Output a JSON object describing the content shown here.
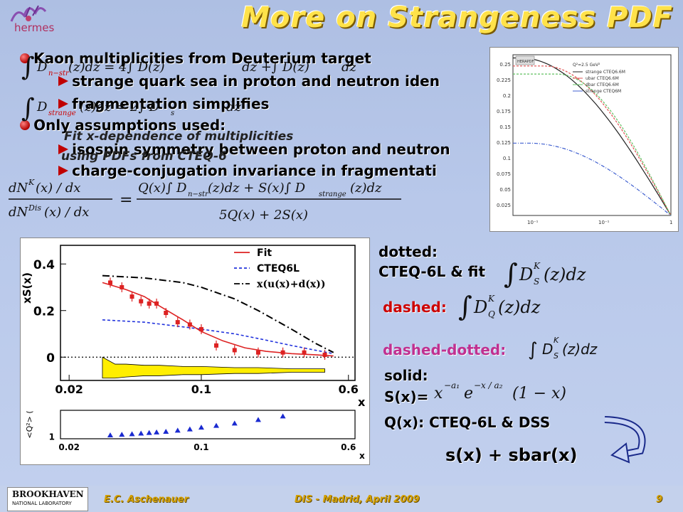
{
  "slide": {
    "title": "More on Strangeness PDF",
    "logo_text": "hermes",
    "bullets": [
      {
        "type": "dot",
        "text": "Kaon multiplicities from Deuterium target"
      },
      {
        "type": "arrow",
        "text": "strange quark sea in proton and neutron iden"
      },
      {
        "type": "arrow",
        "text": "fragmentation simplifies"
      },
      {
        "type": "dot",
        "text": "Only assumptions used:"
      },
      {
        "type": "arrow",
        "text": "isospin symmetry between proton and neutron"
      },
      {
        "type": "arrow",
        "text": "charge-conjugation invariance in fragmentati"
      }
    ],
    "fit_note_1": "Fit x-dependence of multiplicities",
    "fit_note_2": "using PDFs from CTEQ-6",
    "side_labels": {
      "dotted": "dotted:",
      "cteq_fit": "CTEQ-6L & fit",
      "dashed": "dashed:",
      "dashed_dotted": "dashed-dotted:",
      "solid": "solid:",
      "sx": "S(x)=",
      "qx": "Q(x): CTEQ-6L & DSS",
      "result": "s(x) + sbar(x)"
    },
    "footer": {
      "lab": "BROOKHAVEN",
      "lab_sub": "NATIONAL LABORATORY",
      "author": "E.C. Aschenauer",
      "conference": "DIS - Madrid, April 2009",
      "page": "9"
    }
  },
  "colors": {
    "title": "#ffe24a",
    "fit": "#dd2222",
    "cteq": "#2233dd",
    "band": "#ffee00",
    "bullet": "#c00000"
  },
  "chart_data": [
    {
      "type": "scatter",
      "ylabel": "xS(x)",
      "xlabel": "x",
      "x_scale": "log",
      "xlim": [
        0.018,
        0.65
      ],
      "ylim": [
        -0.1,
        0.48
      ],
      "x_ticks": [
        "0.02",
        "0.1",
        "0.6"
      ],
      "y_ticks": [
        "0",
        "0.2",
        "0.4"
      ],
      "legend": [
        "Fit",
        "CTEQ6L",
        "x(u(x)+d(x))"
      ],
      "legend_placement": "top-right",
      "data_points": {
        "x": [
          0.033,
          0.038,
          0.043,
          0.048,
          0.053,
          0.058,
          0.065,
          0.075,
          0.087,
          0.1,
          0.12,
          0.15,
          0.2,
          0.27,
          0.35,
          0.45
        ],
        "y": [
          0.32,
          0.3,
          0.26,
          0.24,
          0.23,
          0.23,
          0.19,
          0.15,
          0.14,
          0.12,
          0.05,
          0.03,
          0.02,
          0.02,
          0.02,
          0.01
        ]
      },
      "fit_curve": {
        "x": [
          0.03,
          0.04,
          0.05,
          0.06,
          0.08,
          0.1,
          0.13,
          0.17,
          0.22,
          0.3,
          0.4,
          0.5
        ],
        "y": [
          0.32,
          0.29,
          0.26,
          0.22,
          0.16,
          0.11,
          0.07,
          0.04,
          0.025,
          0.015,
          0.01,
          0.005
        ]
      },
      "cteq_curve": {
        "x": [
          0.03,
          0.05,
          0.08,
          0.1,
          0.15,
          0.2,
          0.3,
          0.4,
          0.5
        ],
        "y": [
          0.16,
          0.15,
          0.13,
          0.12,
          0.1,
          0.08,
          0.05,
          0.03,
          0.015
        ]
      },
      "ud_curve": {
        "x": [
          0.03,
          0.05,
          0.08,
          0.1,
          0.15,
          0.2,
          0.3,
          0.4,
          0.5
        ],
        "y": [
          0.35,
          0.34,
          0.32,
          0.3,
          0.25,
          0.2,
          0.12,
          0.06,
          0.02
        ]
      },
      "band": {
        "x": [
          0.03,
          0.035,
          0.04,
          0.05,
          0.06,
          0.08,
          0.1,
          0.15,
          0.2,
          0.3,
          0.45
        ],
        "upper": [
          0.0,
          -0.03,
          -0.03,
          -0.035,
          -0.035,
          -0.04,
          -0.04,
          -0.045,
          -0.045,
          -0.05,
          -0.05
        ],
        "lower": [
          -0.09,
          -0.09,
          -0.085,
          -0.08,
          -0.08,
          -0.075,
          -0.075,
          -0.07,
          -0.07,
          -0.065,
          -0.065
        ]
      }
    },
    {
      "type": "scatter",
      "ylabel": "<Q²> (",
      "xlabel": "x",
      "x_ticks": [
        "0.02",
        "0.1",
        "0.6"
      ],
      "y_ticks": [
        "1"
      ],
      "x": [
        0.033,
        0.038,
        0.043,
        0.048,
        0.053,
        0.058,
        0.065,
        0.075,
        0.087,
        0.1,
        0.12,
        0.15,
        0.2,
        0.27
      ],
      "y": [
        1.1,
        1.15,
        1.2,
        1.25,
        1.3,
        1.35,
        1.4,
        1.5,
        1.6,
        1.75,
        1.9,
        2.1,
        2.4,
        2.7
      ]
    },
    {
      "type": "line",
      "inset_legend_title": "HERAPDF",
      "inset_legend": [
        "strange  CTEQ6.6M",
        "ubar  CTEQ6.6M",
        "dbar  CTEQ6.6M",
        "strange  CTEQ6M"
      ],
      "inset_header": "Q²=2.5 GeV²",
      "x_ticks": [
        "10⁻¹",
        "10⁻¹",
        "1"
      ],
      "y_ticks": [
        "0.25",
        "0.225",
        "0.2",
        "0.175",
        "0.15",
        "0.125",
        "0.1",
        "0.075",
        "0.05",
        "0.025"
      ]
    }
  ]
}
